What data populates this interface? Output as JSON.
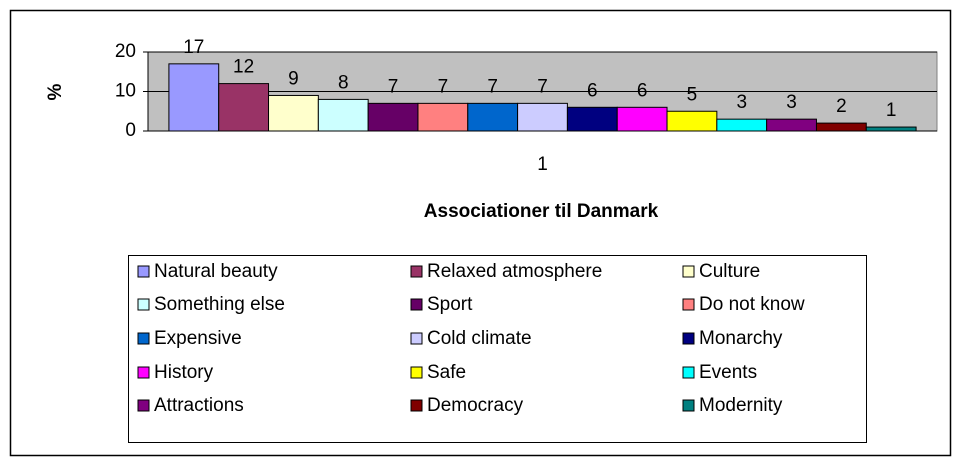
{
  "chart_data": {
    "type": "bar",
    "categories": [
      "1"
    ],
    "x_label": "Associationer til Danmark",
    "y_label": "%",
    "ylim": [
      0,
      20
    ],
    "yticks": [
      0,
      10,
      20
    ],
    "grid": true,
    "legend": "bottom",
    "series": [
      {
        "name": "Natural beauty",
        "color": "#9999ff",
        "values": [
          17
        ]
      },
      {
        "name": "Relaxed atmosphere",
        "color": "#993366",
        "values": [
          12
        ]
      },
      {
        "name": "Culture",
        "color": "#ffffcc",
        "values": [
          9
        ]
      },
      {
        "name": "Something else",
        "color": "#ccffff",
        "values": [
          8
        ]
      },
      {
        "name": "Sport",
        "color": "#660066",
        "values": [
          7
        ]
      },
      {
        "name": "Do not know",
        "color": "#ff8080",
        "values": [
          7
        ]
      },
      {
        "name": "Expensive",
        "color": "#0066cc",
        "values": [
          7
        ]
      },
      {
        "name": "Cold climate",
        "color": "#ccccff",
        "values": [
          7
        ]
      },
      {
        "name": "Monarchy",
        "color": "#000080",
        "values": [
          6
        ]
      },
      {
        "name": "History",
        "color": "#ff00ff",
        "values": [
          6
        ]
      },
      {
        "name": "Safe",
        "color": "#ffff00",
        "values": [
          5
        ]
      },
      {
        "name": "Events",
        "color": "#00ffff",
        "values": [
          3
        ]
      },
      {
        "name": "Attractions",
        "color": "#800080",
        "values": [
          3
        ]
      },
      {
        "name": "Democracy",
        "color": "#800000",
        "values": [
          2
        ]
      },
      {
        "name": "Modernity",
        "color": "#008080",
        "values": [
          1
        ]
      }
    ]
  }
}
